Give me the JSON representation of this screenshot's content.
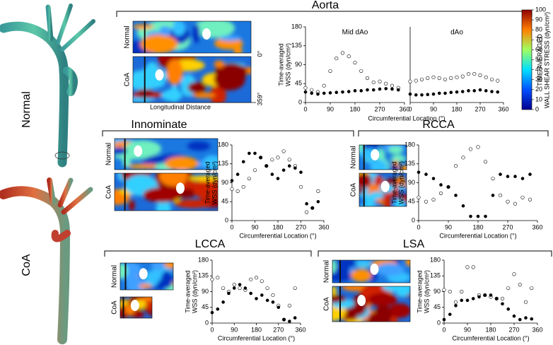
{
  "models": {
    "normal": "Normal",
    "coa": "CoA"
  },
  "sections": [
    "Aorta",
    "Innominate",
    "RCCA",
    "LCCA",
    "LSA"
  ],
  "heatmap_labels": {
    "normal": "Normal",
    "coa": "CoA",
    "x": "Longitudinal Distance",
    "angle_start": "0°",
    "angle_end": "359°"
  },
  "colorbar": {
    "label": [
      "TIME-AVERAGED",
      "WALL SHEAR STRESS (dyn/cm²)"
    ],
    "lim": [
      0,
      100
    ],
    "ticks": [
      0,
      10,
      20,
      30,
      40,
      50,
      60,
      70,
      80,
      90,
      100
    ]
  },
  "chart_data": [
    {
      "type": "scatter",
      "title": "Mid dAo",
      "xlabel": "Circumferential Location (°)",
      "ylabel": [
        "Time-averaged",
        "WSS (dyn/cm²)"
      ],
      "x": [
        0,
        22.5,
        45,
        67.5,
        90,
        112.5,
        135,
        157.5,
        180,
        202.5,
        225,
        247.5,
        270,
        292.5,
        315,
        337.5
      ],
      "xlim": [
        0,
        360
      ],
      "xticks": [
        0,
        90,
        180,
        270,
        360
      ],
      "ylim": [
        0,
        180
      ],
      "yticks": [
        0,
        45,
        90,
        135,
        180
      ],
      "series": [
        {
          "name": "Normal",
          "color": "#000000",
          "filled": false,
          "values": [
            35,
            30,
            25,
            40,
            75,
            105,
            118,
            110,
            95,
            75,
            58,
            48,
            50,
            45,
            40,
            35
          ]
        },
        {
          "name": "CoA",
          "color": "#000000",
          "filled": true,
          "values": [
            25,
            22,
            20,
            22,
            23,
            24,
            25,
            26,
            28,
            28,
            30,
            30,
            32,
            33,
            32,
            30
          ]
        }
      ]
    },
    {
      "type": "scatter",
      "title": "dAo",
      "x": [
        0,
        22.5,
        45,
        67.5,
        90,
        112.5,
        135,
        157.5,
        180,
        202.5,
        225,
        247.5,
        270,
        292.5,
        315,
        337.5
      ],
      "xlim": [
        0,
        360
      ],
      "xticks": [
        0,
        90,
        180,
        270,
        360
      ],
      "ylim": [
        0,
        180
      ],
      "series": [
        {
          "name": "Normal",
          "color": "#000000",
          "filled": false,
          "values": [
            50,
            52,
            55,
            58,
            60,
            58,
            55,
            58,
            60,
            62,
            68,
            68,
            65,
            60,
            55,
            52
          ]
        },
        {
          "name": "CoA",
          "color": "#000000",
          "filled": true,
          "values": [
            20,
            18,
            18,
            19,
            20,
            22,
            22,
            24,
            25,
            26,
            28,
            28,
            30,
            28,
            26,
            25
          ]
        }
      ]
    },
    {
      "type": "scatter",
      "xlabel": "Circumferential Location (°)",
      "ylabel": [
        "Time-averaged",
        "WSS (dyn/cm²)"
      ],
      "x": [
        0,
        22.5,
        45,
        67.5,
        90,
        112.5,
        135,
        157.5,
        180,
        202.5,
        225,
        247.5,
        270,
        292.5,
        315,
        337.5
      ],
      "xlim": [
        0,
        360
      ],
      "xticks": [
        0,
        90,
        180,
        270,
        360
      ],
      "ylim": [
        0,
        180
      ],
      "yticks": [
        0,
        45,
        90,
        135,
        180
      ],
      "series": [
        {
          "name": "Normal",
          "color": "#000000",
          "filled": false,
          "values": [
            75,
            70,
            80,
            100,
            120,
            150,
            130,
            145,
            150,
            165,
            145,
            130,
            80,
            20,
            30,
            70
          ]
        },
        {
          "name": "CoA",
          "color": "#000000",
          "filled": true,
          "values": [
            95,
            110,
            140,
            160,
            160,
            150,
            130,
            110,
            100,
            120,
            130,
            125,
            115,
            40,
            30,
            45
          ]
        }
      ]
    },
    {
      "type": "scatter",
      "xlabel": "Circumferential Location (°)",
      "ylabel": [
        "Time-averaged",
        "WSS (dyn/cm²)"
      ],
      "x": [
        0,
        22.5,
        45,
        67.5,
        90,
        112.5,
        135,
        157.5,
        180,
        202.5,
        225,
        247.5,
        270,
        292.5,
        315,
        337.5
      ],
      "xlim": [
        0,
        360
      ],
      "xticks": [
        0,
        90,
        180,
        270,
        360
      ],
      "ylim": [
        0,
        180
      ],
      "yticks": [
        0,
        45,
        90,
        135,
        180
      ],
      "series": [
        {
          "name": "Normal",
          "color": "#000000",
          "filled": false,
          "values": [
            55,
            45,
            50,
            65,
            80,
            130,
            150,
            170,
            175,
            140,
            100,
            60,
            45,
            40,
            55,
            50
          ]
        },
        {
          "name": "CoA",
          "color": "#000000",
          "filled": true,
          "values": [
            115,
            110,
            100,
            85,
            80,
            60,
            35,
            10,
            10,
            10,
            60,
            110,
            105,
            105,
            100,
            110
          ]
        }
      ]
    },
    {
      "type": "scatter",
      "xlabel": "Circumferential Location (°)",
      "ylabel": [
        "Time-averaged",
        "WSS (dyn/cm²)"
      ],
      "x": [
        0,
        22.5,
        45,
        67.5,
        90,
        112.5,
        135,
        157.5,
        180,
        202.5,
        225,
        247.5,
        270,
        292.5,
        315,
        337.5
      ],
      "xlim": [
        0,
        360
      ],
      "xticks": [
        0,
        90,
        180,
        270,
        360
      ],
      "ylim": [
        0,
        180
      ],
      "yticks": [
        0,
        45,
        90,
        135,
        180
      ],
      "series": [
        {
          "name": "Normal",
          "color": "#000000",
          "filled": false,
          "values": [
            125,
            130,
            100,
            90,
            110,
            100,
            95,
            125,
            130,
            120,
            100,
            80,
            50,
            10,
            50,
            100
          ]
        },
        {
          "name": "CoA",
          "color": "#000000",
          "filled": true,
          "values": [
            30,
            40,
            60,
            85,
            100,
            110,
            100,
            85,
            70,
            80,
            65,
            60,
            45,
            10,
            5,
            15
          ]
        }
      ]
    },
    {
      "type": "scatter",
      "xlabel": "Circumferential Location (°)",
      "ylabel": [
        "Time-averaged",
        "WSS (dyn/cm²)"
      ],
      "x": [
        0,
        22.5,
        45,
        67.5,
        90,
        112.5,
        135,
        157.5,
        180,
        202.5,
        225,
        247.5,
        270,
        292.5,
        315,
        337.5
      ],
      "xlim": [
        0,
        360
      ],
      "xticks": [
        0,
        90,
        180,
        270,
        360
      ],
      "ylim": [
        0,
        180
      ],
      "yticks": [
        0,
        45,
        90,
        135,
        180
      ],
      "series": [
        {
          "name": "Normal",
          "color": "#000000",
          "filled": false,
          "values": [
            95,
            90,
            60,
            90,
            160,
            160,
            80,
            80,
            75,
            70,
            70,
            100,
            140,
            110,
            60,
            100
          ]
        },
        {
          "name": "CoA",
          "color": "#000000",
          "filled": true,
          "values": [
            10,
            25,
            50,
            65,
            65,
            70,
            75,
            80,
            80,
            70,
            55,
            40,
            20,
            10,
            15,
            12
          ]
        }
      ]
    }
  ]
}
